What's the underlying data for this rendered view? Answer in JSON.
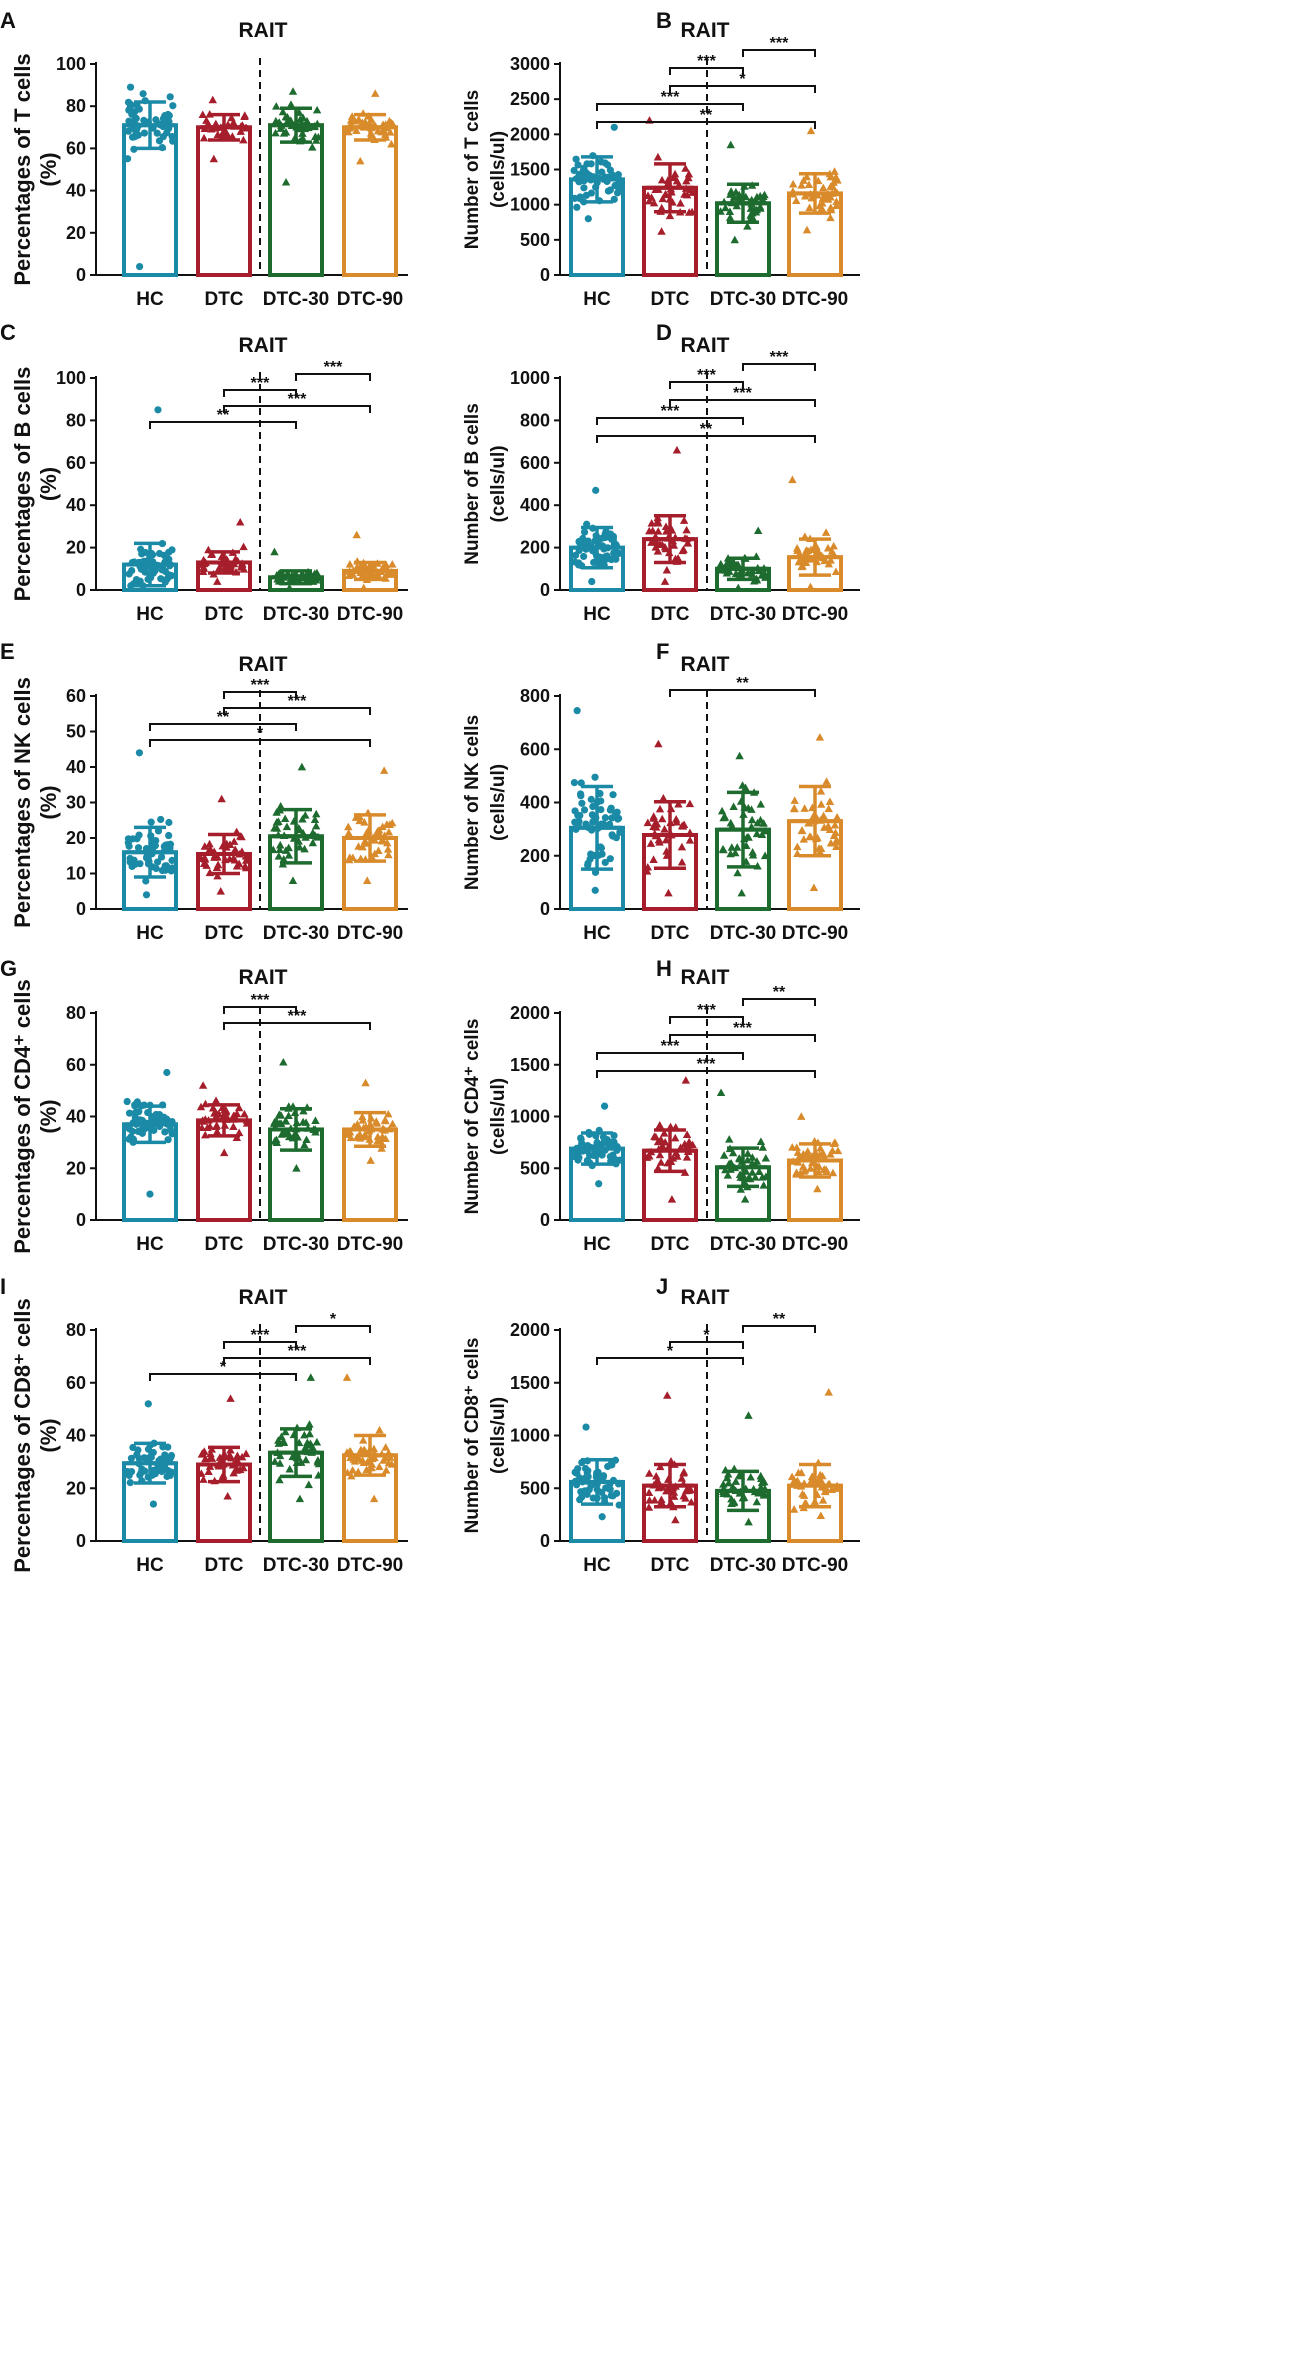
{
  "figure": {
    "colors": {
      "HC": "#1b8aa6",
      "DTC": "#a61e2b",
      "DTC-30": "#1e6b2f",
      "DTC-90": "#d98b2b",
      "axis": "#111111"
    },
    "groups": [
      "HC",
      "DTC",
      "DTC-30",
      "DTC-90"
    ]
  },
  "chart_data": [
    {
      "panel": "A",
      "type": "bar",
      "title": "RAIT",
      "ylabel": "Percentages of T cells\n(%)",
      "ylim": [
        0,
        100
      ],
      "yticks": [
        0,
        20,
        40,
        60,
        80,
        100
      ],
      "categories": [
        "HC",
        "DTC",
        "DTC-30",
        "DTC-90"
      ],
      "values": [
        71,
        70,
        71,
        70
      ],
      "sd": [
        11,
        6,
        8,
        6
      ],
      "points": {
        "n": [
          58,
          40,
          42,
          42
        ],
        "min": [
          4,
          55,
          44,
          54
        ],
        "max": [
          89,
          83,
          87,
          86
        ]
      },
      "significance": []
    },
    {
      "panel": "B",
      "type": "bar",
      "title": "RAIT",
      "ylabel": "Number of T cells\n(cells/ul)",
      "ylim": [
        0,
        3000
      ],
      "yticks": [
        0,
        500,
        1000,
        1500,
        2000,
        2500,
        3000
      ],
      "categories": [
        "HC",
        "DTC",
        "DTC-30",
        "DTC-90"
      ],
      "values": [
        1360,
        1240,
        1020,
        1160
      ],
      "sd": [
        320,
        340,
        270,
        280
      ],
      "points": {
        "n": [
          58,
          40,
          42,
          42
        ],
        "min": [
          800,
          620,
          500,
          640
        ],
        "max": [
          2100,
          2200,
          1850,
          2050
        ]
      },
      "significance": [
        {
          "from": "HC",
          "to": "DTC-90",
          "label": "**"
        },
        {
          "from": "HC",
          "to": "DTC-30",
          "label": "***"
        },
        {
          "from": "DTC",
          "to": "DTC-90",
          "label": "*"
        },
        {
          "from": "DTC",
          "to": "DTC-30",
          "label": "***"
        },
        {
          "from": "DTC-30",
          "to": "DTC-90",
          "label": "***"
        }
      ]
    },
    {
      "panel": "C",
      "type": "bar",
      "title": "RAIT",
      "ylabel": "Percentages of B cells\n(%)",
      "ylim": [
        0,
        100
      ],
      "yticks": [
        0,
        20,
        40,
        60,
        80,
        100
      ],
      "categories": [
        "HC",
        "DTC",
        "DTC-30",
        "DTC-90"
      ],
      "values": [
        12,
        13,
        6,
        9
      ],
      "sd": [
        10,
        5,
        3,
        4
      ],
      "points": {
        "n": [
          58,
          40,
          42,
          42
        ],
        "min": [
          2,
          4,
          1,
          1
        ],
        "max": [
          85,
          32,
          18,
          26
        ]
      },
      "significance": [
        {
          "from": "HC",
          "to": "DTC-30",
          "label": "**"
        },
        {
          "from": "DTC",
          "to": "DTC-90",
          "label": "***"
        },
        {
          "from": "DTC",
          "to": "DTC-30",
          "label": "***"
        },
        {
          "from": "DTC-30",
          "to": "DTC-90",
          "label": "***"
        }
      ]
    },
    {
      "panel": "D",
      "type": "bar",
      "title": "RAIT",
      "ylabel": "Number of B cells\n(cells/ul)",
      "ylim": [
        0,
        1000
      ],
      "yticks": [
        0,
        200,
        400,
        600,
        800,
        1000
      ],
      "categories": [
        "HC",
        "DTC",
        "DTC-30",
        "DTC-90"
      ],
      "values": [
        200,
        240,
        100,
        155
      ],
      "sd": [
        95,
        110,
        50,
        85
      ],
      "points": {
        "n": [
          58,
          40,
          42,
          42
        ],
        "min": [
          40,
          40,
          10,
          15
        ],
        "max": [
          470,
          660,
          280,
          520
        ]
      },
      "significance": [
        {
          "from": "HC",
          "to": "DTC-90",
          "label": "**"
        },
        {
          "from": "HC",
          "to": "DTC-30",
          "label": "***"
        },
        {
          "from": "DTC",
          "to": "DTC-90",
          "label": "***"
        },
        {
          "from": "DTC",
          "to": "DTC-30",
          "label": "***"
        },
        {
          "from": "DTC-30",
          "to": "DTC-90",
          "label": "***"
        }
      ]
    },
    {
      "panel": "E",
      "type": "bar",
      "title": "RAIT",
      "ylabel": "Percentages of NK cells\n(%)",
      "ylim": [
        0,
        60
      ],
      "yticks": [
        0,
        10,
        20,
        30,
        40,
        50,
        60
      ],
      "categories": [
        "HC",
        "DTC",
        "DTC-30",
        "DTC-90"
      ],
      "values": [
        16,
        15.5,
        20.5,
        20
      ],
      "sd": [
        7,
        5.5,
        7.5,
        6.5
      ],
      "points": {
        "n": [
          58,
          40,
          42,
          42
        ],
        "min": [
          4,
          5,
          8,
          8
        ],
        "max": [
          44,
          31,
          40,
          39
        ]
      },
      "significance": [
        {
          "from": "HC",
          "to": "DTC-90",
          "label": "*"
        },
        {
          "from": "HC",
          "to": "DTC-30",
          "label": "**"
        },
        {
          "from": "DTC",
          "to": "DTC-90",
          "label": "***"
        },
        {
          "from": "DTC",
          "to": "DTC-30",
          "label": "***"
        }
      ]
    },
    {
      "panel": "F",
      "type": "bar",
      "title": "RAIT",
      "ylabel": "Number of NK cells\n(cells/ul)",
      "ylim": [
        0,
        800
      ],
      "yticks": [
        0,
        200,
        400,
        600,
        800
      ],
      "categories": [
        "HC",
        "DTC",
        "DTC-30",
        "DTC-90"
      ],
      "values": [
        305,
        278,
        298,
        330
      ],
      "sd": [
        155,
        125,
        140,
        130
      ],
      "points": {
        "n": [
          58,
          40,
          42,
          42
        ],
        "min": [
          70,
          60,
          60,
          80
        ],
        "max": [
          745,
          620,
          575,
          645
        ]
      },
      "significance": [
        {
          "from": "DTC",
          "to": "DTC-90",
          "label": "**"
        }
      ]
    },
    {
      "panel": "G",
      "type": "bar",
      "title": "RAIT",
      "ylabel": "Percentages of CD4⁺ cells\n(%)",
      "ylim": [
        0,
        80
      ],
      "yticks": [
        0,
        20,
        40,
        60,
        80
      ],
      "categories": [
        "HC",
        "DTC",
        "DTC-30",
        "DTC-90"
      ],
      "values": [
        37,
        38.5,
        35,
        35
      ],
      "sd": [
        7,
        6,
        8,
        6.5
      ],
      "points": {
        "n": [
          58,
          40,
          42,
          42
        ],
        "min": [
          10,
          26,
          20,
          23
        ],
        "max": [
          57,
          52,
          61,
          53
        ]
      },
      "significance": [
        {
          "from": "DTC",
          "to": "DTC-90",
          "label": "***"
        },
        {
          "from": "DTC",
          "to": "DTC-30",
          "label": "***"
        }
      ]
    },
    {
      "panel": "H",
      "type": "bar",
      "title": "RAIT",
      "ylabel": "Number of CD4⁺ cells\n(cells/ul)",
      "ylim": [
        0,
        2000
      ],
      "yticks": [
        0,
        500,
        1000,
        1500,
        2000
      ],
      "categories": [
        "HC",
        "DTC",
        "DTC-30",
        "DTC-90"
      ],
      "values": [
        690,
        670,
        510,
        575
      ],
      "sd": [
        150,
        200,
        185,
        160
      ],
      "points": {
        "n": [
          58,
          40,
          42,
          42
        ],
        "min": [
          350,
          200,
          200,
          300
        ],
        "max": [
          1100,
          1350,
          1230,
          1000
        ]
      },
      "significance": [
        {
          "from": "HC",
          "to": "DTC-90",
          "label": "***"
        },
        {
          "from": "HC",
          "to": "DTC-30",
          "label": "***"
        },
        {
          "from": "DTC",
          "to": "DTC-90",
          "label": "***"
        },
        {
          "from": "DTC",
          "to": "DTC-30",
          "label": "***"
        },
        {
          "from": "DTC-30",
          "to": "DTC-90",
          "label": "**"
        }
      ]
    },
    {
      "panel": "I",
      "type": "bar",
      "title": "RAIT",
      "ylabel": "Percentages of CD8⁺ cells\n(%)",
      "ylim": [
        0,
        80
      ],
      "yticks": [
        0,
        20,
        40,
        60,
        80
      ],
      "categories": [
        "HC",
        "DTC",
        "DTC-30",
        "DTC-90"
      ],
      "values": [
        29.5,
        29,
        33.5,
        32.5
      ],
      "sd": [
        7.5,
        6.5,
        9,
        7.5
      ],
      "points": {
        "n": [
          58,
          40,
          42,
          42
        ],
        "min": [
          14,
          17,
          16,
          16
        ],
        "max": [
          52,
          54,
          62,
          62
        ]
      },
      "significance": [
        {
          "from": "HC",
          "to": "DTC-30",
          "label": "*"
        },
        {
          "from": "DTC",
          "to": "DTC-90",
          "label": "***"
        },
        {
          "from": "DTC",
          "to": "DTC-30",
          "label": "***"
        },
        {
          "from": "DTC-30",
          "to": "DTC-90",
          "label": "*"
        }
      ]
    },
    {
      "panel": "J",
      "type": "bar",
      "title": "RAIT",
      "ylabel": "Number of CD8⁺ cells\n(cells/ul)",
      "ylim": [
        0,
        2000
      ],
      "yticks": [
        0,
        500,
        1000,
        1500,
        2000
      ],
      "categories": [
        "HC",
        "DTC",
        "DTC-30",
        "DTC-90"
      ],
      "values": [
        560,
        525,
        475,
        525
      ],
      "sd": [
        210,
        200,
        185,
        200
      ],
      "points": {
        "n": [
          58,
          40,
          42,
          42
        ],
        "min": [
          230,
          200,
          180,
          240
        ],
        "max": [
          1080,
          1380,
          1190,
          1410
        ]
      },
      "significance": [
        {
          "from": "HC",
          "to": "DTC-30",
          "label": "*"
        },
        {
          "from": "DTC",
          "to": "DTC-30",
          "label": "*"
        },
        {
          "from": "DTC-30",
          "to": "DTC-90",
          "label": "**"
        }
      ]
    }
  ]
}
